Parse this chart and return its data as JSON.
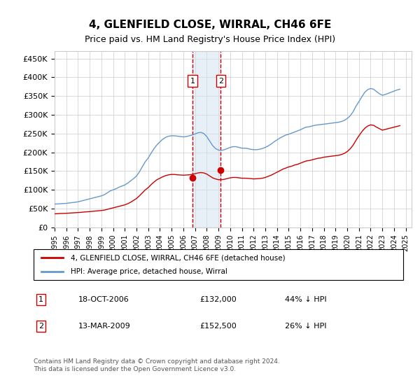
{
  "title": "4, GLENFIELD CLOSE, WIRRAL, CH46 6FE",
  "subtitle": "Price paid vs. HM Land Registry's House Price Index (HPI)",
  "ylabel_ticks": [
    "£0",
    "£50K",
    "£100K",
    "£150K",
    "£200K",
    "£250K",
    "£300K",
    "£350K",
    "£400K",
    "£450K"
  ],
  "ylim": [
    0,
    470000
  ],
  "xlim_start": 1995.0,
  "xlim_end": 2025.5,
  "hpi_color": "#6699cc",
  "price_color": "#cc0000",
  "grid_color": "#cccccc",
  "background_color": "#ffffff",
  "sale1_date": "18-OCT-2006",
  "sale1_price": 132000,
  "sale1_pct": "44%",
  "sale1_x": 2006.8,
  "sale2_date": "13-MAR-2009",
  "sale2_price": 152500,
  "sale2_pct": "26%",
  "sale2_x": 2009.2,
  "legend_label1": "4, GLENFIELD CLOSE, WIRRAL, CH46 6FE (detached house)",
  "legend_label2": "HPI: Average price, detached house, Wirral",
  "footnote": "Contains HM Land Registry data © Crown copyright and database right 2024.\nThis data is licensed under the Open Government Licence v3.0.",
  "hpi_data_x": [
    1995.0,
    1995.25,
    1995.5,
    1995.75,
    1996.0,
    1996.25,
    1996.5,
    1996.75,
    1997.0,
    1997.25,
    1997.5,
    1997.75,
    1998.0,
    1998.25,
    1998.5,
    1998.75,
    1999.0,
    1999.25,
    1999.5,
    1999.75,
    2000.0,
    2000.25,
    2000.5,
    2000.75,
    2001.0,
    2001.25,
    2001.5,
    2001.75,
    2002.0,
    2002.25,
    2002.5,
    2002.75,
    2003.0,
    2003.25,
    2003.5,
    2003.75,
    2004.0,
    2004.25,
    2004.5,
    2004.75,
    2005.0,
    2005.25,
    2005.5,
    2005.75,
    2006.0,
    2006.25,
    2006.5,
    2006.75,
    2007.0,
    2007.25,
    2007.5,
    2007.75,
    2008.0,
    2008.25,
    2008.5,
    2008.75,
    2009.0,
    2009.25,
    2009.5,
    2009.75,
    2010.0,
    2010.25,
    2010.5,
    2010.75,
    2011.0,
    2011.25,
    2011.5,
    2011.75,
    2012.0,
    2012.25,
    2012.5,
    2012.75,
    2013.0,
    2013.25,
    2013.5,
    2013.75,
    2014.0,
    2014.25,
    2014.5,
    2014.75,
    2015.0,
    2015.25,
    2015.5,
    2015.75,
    2016.0,
    2016.25,
    2016.5,
    2016.75,
    2017.0,
    2017.25,
    2017.5,
    2017.75,
    2018.0,
    2018.25,
    2018.5,
    2018.75,
    2019.0,
    2019.25,
    2019.5,
    2019.75,
    2020.0,
    2020.25,
    2020.5,
    2020.75,
    2021.0,
    2021.25,
    2021.5,
    2021.75,
    2022.0,
    2022.25,
    2022.5,
    2022.75,
    2023.0,
    2023.25,
    2023.5,
    2023.75,
    2024.0,
    2024.25,
    2024.5
  ],
  "hpi_data_y": [
    62000,
    62500,
    63000,
    63500,
    64000,
    65000,
    66000,
    67000,
    68000,
    70000,
    72000,
    74000,
    76000,
    78000,
    80000,
    82000,
    84000,
    87000,
    92000,
    97000,
    100000,
    103000,
    107000,
    110000,
    113000,
    118000,
    124000,
    130000,
    137000,
    148000,
    162000,
    175000,
    185000,
    198000,
    210000,
    220000,
    228000,
    235000,
    240000,
    243000,
    244000,
    244000,
    243000,
    242000,
    241000,
    242000,
    244000,
    246000,
    249000,
    252000,
    253000,
    250000,
    242000,
    230000,
    218000,
    210000,
    206000,
    205000,
    207000,
    210000,
    213000,
    215000,
    215000,
    213000,
    211000,
    211000,
    210000,
    208000,
    207000,
    207000,
    208000,
    210000,
    213000,
    217000,
    222000,
    228000,
    233000,
    238000,
    242000,
    246000,
    248000,
    251000,
    254000,
    257000,
    260000,
    264000,
    267000,
    268000,
    270000,
    272000,
    273000,
    274000,
    275000,
    276000,
    277000,
    278000,
    279000,
    280000,
    282000,
    285000,
    290000,
    297000,
    308000,
    323000,
    335000,
    348000,
    360000,
    367000,
    370000,
    368000,
    362000,
    356000,
    352000,
    354000,
    357000,
    360000,
    363000,
    366000,
    368000
  ],
  "price_data_x": [
    1995.0,
    1995.25,
    1995.5,
    1995.75,
    1996.0,
    1996.25,
    1996.5,
    1996.75,
    1997.0,
    1997.25,
    1997.5,
    1997.75,
    1998.0,
    1998.25,
    1998.5,
    1998.75,
    1999.0,
    1999.25,
    1999.5,
    1999.75,
    2000.0,
    2000.25,
    2000.5,
    2000.75,
    2001.0,
    2001.25,
    2001.5,
    2001.75,
    2002.0,
    2002.25,
    2002.5,
    2002.75,
    2003.0,
    2003.25,
    2003.5,
    2003.75,
    2004.0,
    2004.25,
    2004.5,
    2004.75,
    2005.0,
    2005.25,
    2005.5,
    2005.75,
    2006.0,
    2006.25,
    2006.5,
    2006.75,
    2007.0,
    2007.25,
    2007.5,
    2007.75,
    2008.0,
    2008.25,
    2008.5,
    2008.75,
    2009.0,
    2009.25,
    2009.5,
    2009.75,
    2010.0,
    2010.25,
    2010.5,
    2010.75,
    2011.0,
    2011.25,
    2011.5,
    2011.75,
    2012.0,
    2012.25,
    2012.5,
    2012.75,
    2013.0,
    2013.25,
    2013.5,
    2013.75,
    2014.0,
    2014.25,
    2014.5,
    2014.75,
    2015.0,
    2015.25,
    2015.5,
    2015.75,
    2016.0,
    2016.25,
    2016.5,
    2016.75,
    2017.0,
    2017.25,
    2017.5,
    2017.75,
    2018.0,
    2018.25,
    2018.5,
    2018.75,
    2019.0,
    2019.25,
    2019.5,
    2019.75,
    2020.0,
    2020.25,
    2020.5,
    2020.75,
    2021.0,
    2021.25,
    2021.5,
    2021.75,
    2022.0,
    2022.25,
    2022.5,
    2022.75,
    2023.0,
    2023.25,
    2023.5,
    2023.75,
    2024.0,
    2024.25,
    2024.5
  ],
  "price_data_y": [
    36000,
    36500,
    37000,
    37200,
    37500,
    38000,
    38500,
    39000,
    39500,
    40000,
    40800,
    41500,
    42000,
    42800,
    43500,
    44200,
    45000,
    46000,
    48000,
    50000,
    52000,
    54000,
    56000,
    58000,
    60000,
    63000,
    67000,
    72000,
    77000,
    84000,
    92000,
    100000,
    106000,
    114000,
    121000,
    127000,
    131000,
    135000,
    138000,
    140000,
    141000,
    141000,
    140000,
    139500,
    139000,
    139500,
    140000,
    141000,
    143000,
    145000,
    146000,
    145000,
    142000,
    137000,
    132000,
    129000,
    127000,
    127000,
    128000,
    130000,
    132000,
    133000,
    133000,
    132000,
    131000,
    131000,
    130500,
    130000,
    129000,
    129500,
    130000,
    131000,
    133000,
    136000,
    139000,
    143000,
    147000,
    151000,
    155000,
    158000,
    161000,
    163000,
    166000,
    168000,
    171000,
    174000,
    177000,
    178000,
    180000,
    182000,
    184000,
    185000,
    187000,
    188000,
    189000,
    190000,
    191000,
    192000,
    194000,
    197000,
    202000,
    209000,
    219000,
    232000,
    244000,
    255000,
    264000,
    270000,
    273000,
    272000,
    267000,
    263000,
    259000,
    261000,
    263000,
    265000,
    267000,
    269000,
    271000
  ]
}
